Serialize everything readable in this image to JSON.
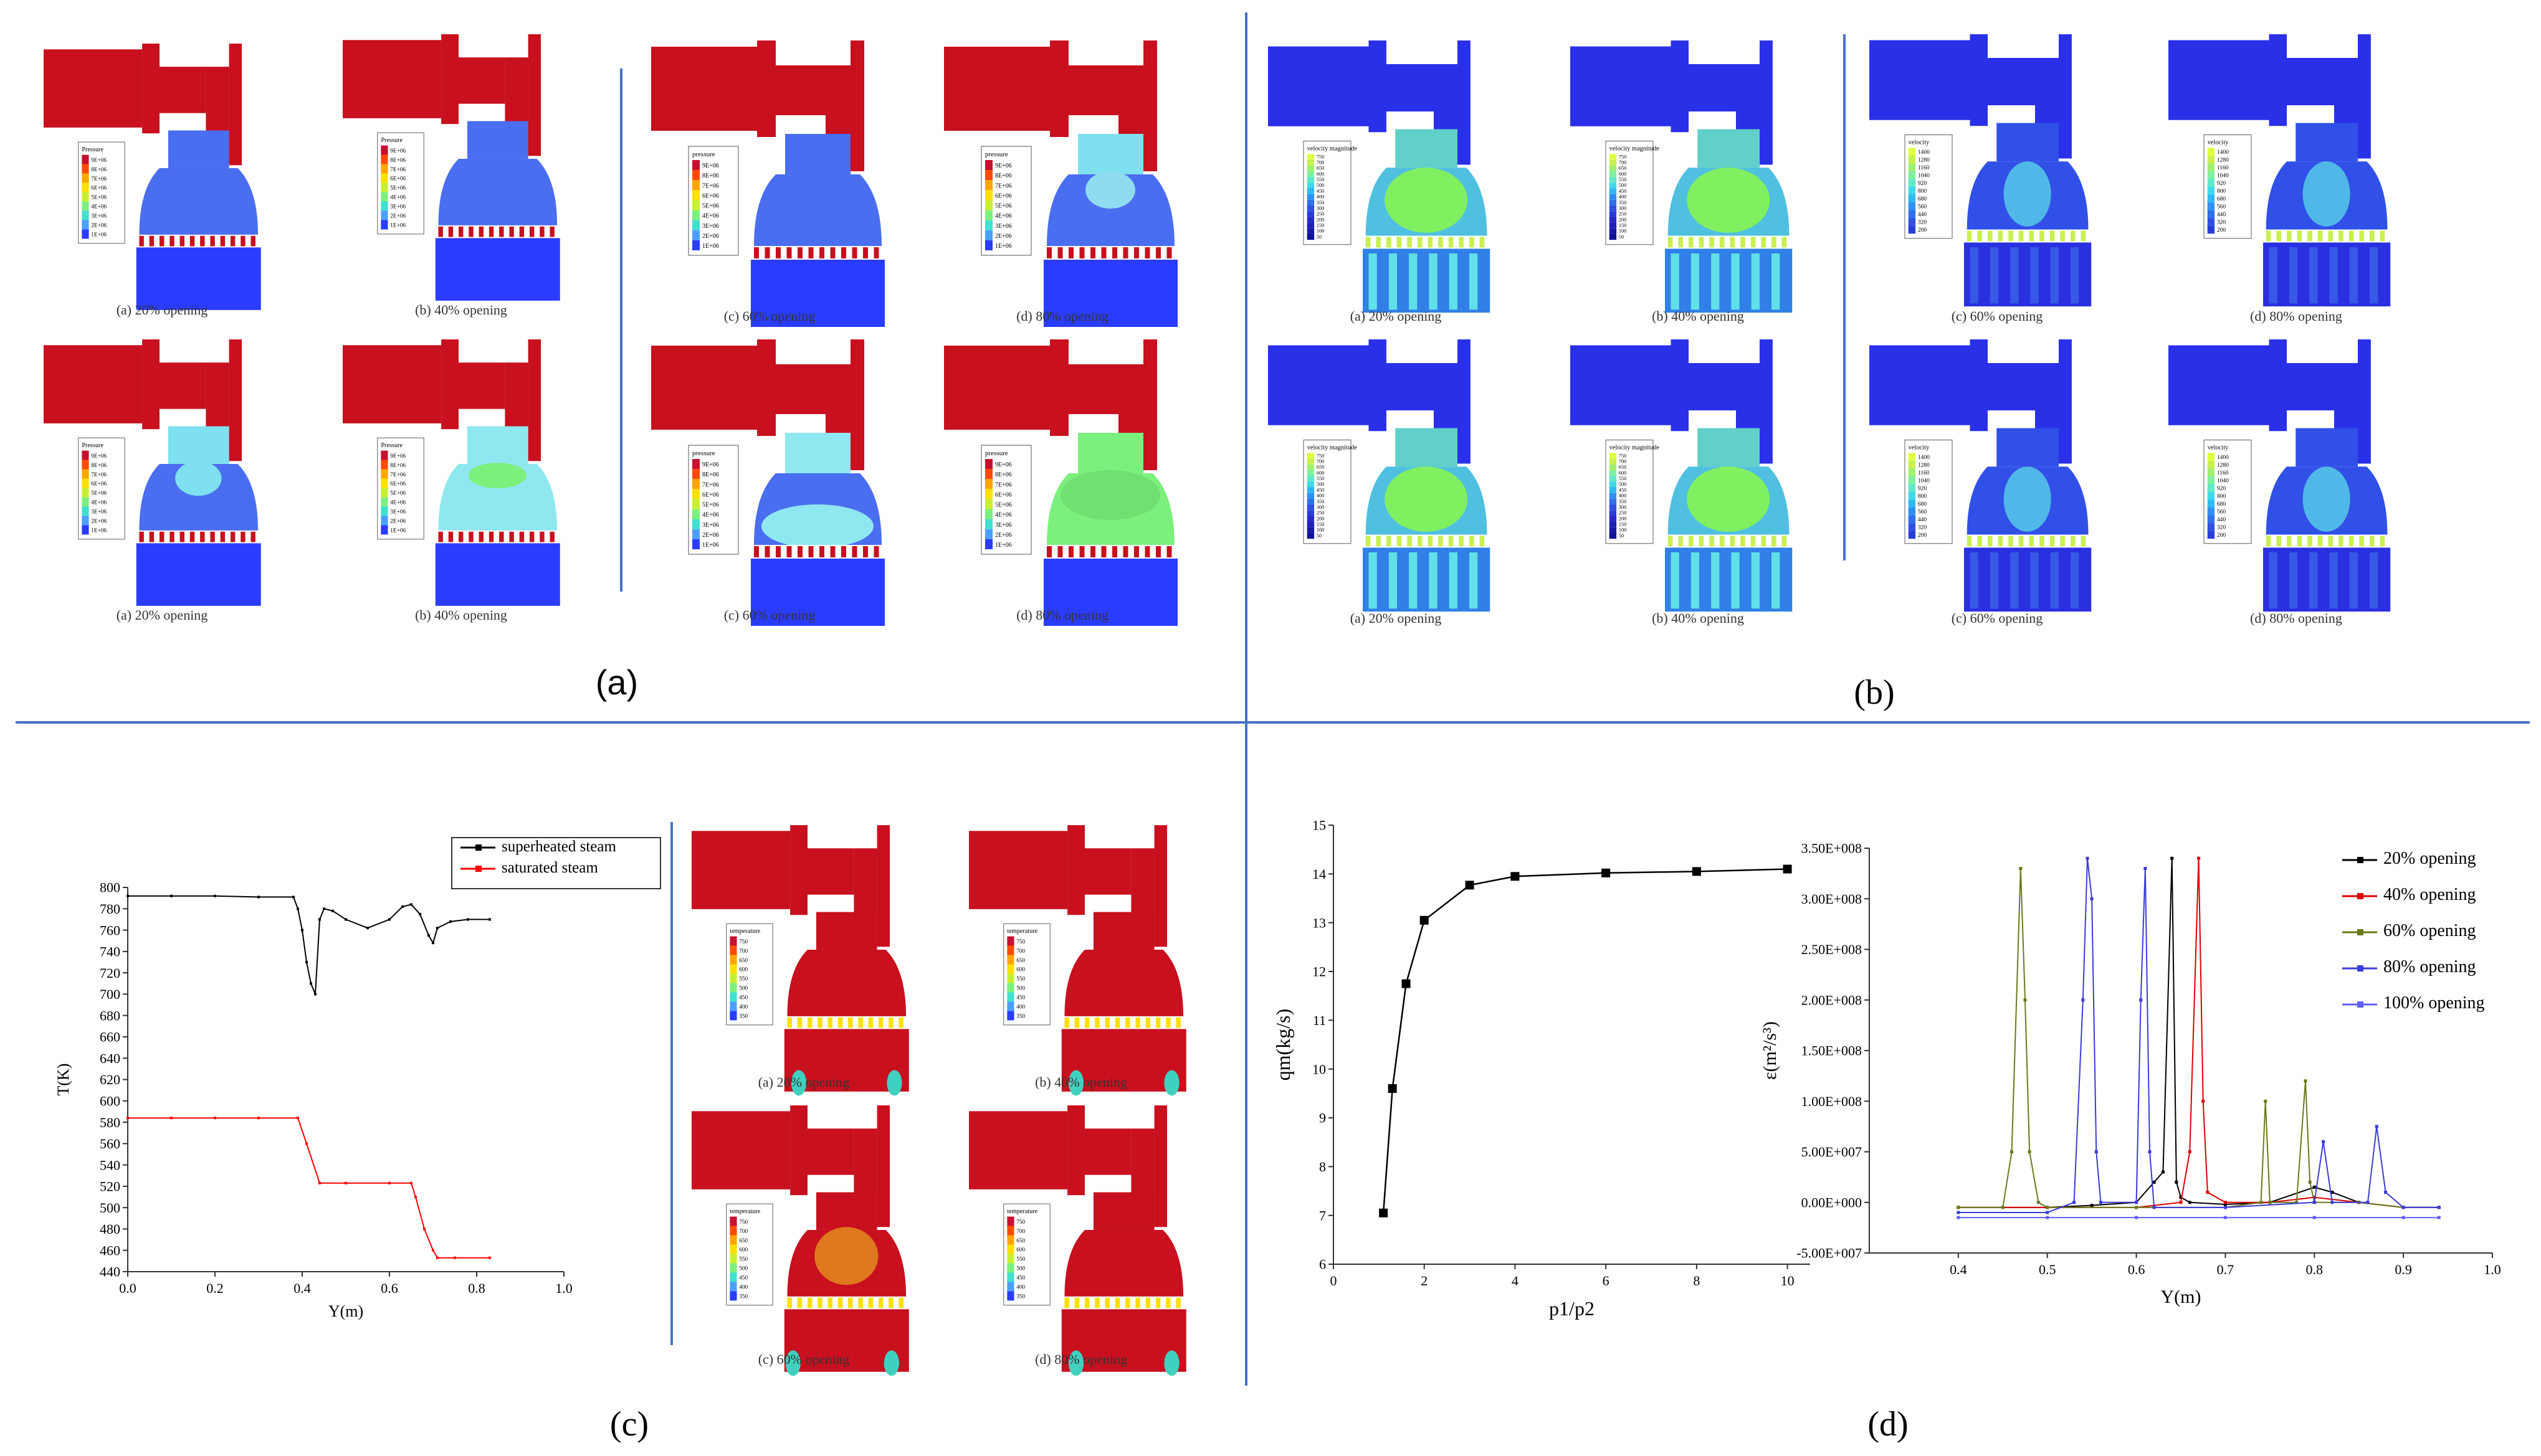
{
  "sections": {
    "a": {
      "label": "(a)",
      "legend_titles": [
        "Pressure",
        "pressure"
      ],
      "legend_ticks": [
        "9E+06",
        "8E+06",
        "7E+06",
        "6E+06",
        "5E+06",
        "4E+06",
        "3E+06",
        "2E+06",
        "1E+06"
      ],
      "captions": [
        "(a) 20% opening",
        "(b) 40% opening",
        "(c) 60% opening",
        "(d) 80% opening"
      ]
    },
    "b": {
      "label": "(b)",
      "legend_titles": [
        "velocity magnitude",
        "velocity"
      ],
      "legend_ticks_left": [
        "750",
        "700",
        "650",
        "600",
        "550",
        "500",
        "450",
        "400",
        "350",
        "300",
        "250",
        "200",
        "150",
        "100",
        "50"
      ],
      "legend_ticks_right": [
        "1400",
        "1280",
        "1160",
        "1040",
        "920",
        "800",
        "680",
        "560",
        "440",
        "320",
        "200"
      ],
      "captions": [
        "(a) 20% opening",
        "(b) 40% opening",
        "(c) 60% opening",
        "(d) 80% opening"
      ]
    },
    "c": {
      "label": "(c)",
      "legend_title": "temperature",
      "legend_ticks": [
        "750",
        "700",
        "650",
        "600",
        "550",
        "500",
        "450",
        "400",
        "350"
      ],
      "captions": [
        "(a) 20% opening",
        "(b) 40% opening",
        "(c) 60% opening",
        "(d) 80% opening"
      ]
    },
    "d": {
      "label": "(d)"
    }
  },
  "chart_data": [
    {
      "type": "line",
      "xlabel": "Y(m)",
      "ylabel": "T(K)",
      "xlim": [
        0.0,
        1.0
      ],
      "ylim": [
        440,
        800
      ],
      "xticks": [
        "0.0",
        "0.2",
        "0.4",
        "0.6",
        "0.8",
        "1.0"
      ],
      "yticks": [
        "440",
        "460",
        "480",
        "500",
        "520",
        "540",
        "560",
        "580",
        "600",
        "620",
        "640",
        "660",
        "680",
        "700",
        "720",
        "740",
        "760",
        "780",
        "800"
      ],
      "legend": "top-right",
      "series": [
        {
          "name": "superheated steam",
          "color": "#000000",
          "x": [
            0.0,
            0.1,
            0.2,
            0.3,
            0.38,
            0.39,
            0.4,
            0.41,
            0.42,
            0.43,
            0.44,
            0.45,
            0.47,
            0.5,
            0.55,
            0.6,
            0.63,
            0.65,
            0.67,
            0.69,
            0.7,
            0.71,
            0.74,
            0.78,
            0.83
          ],
          "y": [
            792,
            792,
            792,
            791,
            791,
            780,
            760,
            730,
            710,
            700,
            770,
            780,
            778,
            770,
            762,
            770,
            782,
            784,
            775,
            755,
            748,
            762,
            768,
            770,
            770
          ]
        },
        {
          "name": "saturated steam",
          "color": "#ff0000",
          "x": [
            0.0,
            0.1,
            0.2,
            0.3,
            0.39,
            0.41,
            0.44,
            0.5,
            0.6,
            0.65,
            0.66,
            0.68,
            0.7,
            0.71,
            0.75,
            0.83
          ],
          "y": [
            584,
            584,
            584,
            584,
            584,
            560,
            523,
            523,
            523,
            523,
            510,
            480,
            460,
            453,
            453,
            453
          ]
        }
      ]
    },
    {
      "type": "line",
      "xlabel": "p1/p2",
      "ylabel": "qm(kg/s)",
      "xlim": [
        0,
        10.5
      ],
      "ylim": [
        6,
        15
      ],
      "xticks": [
        "0",
        "2",
        "4",
        "6",
        "8",
        "10"
      ],
      "yticks": [
        "6",
        "7",
        "8",
        "9",
        "10",
        "11",
        "12",
        "13",
        "14",
        "15"
      ],
      "series": [
        {
          "name": "",
          "color": "#000000",
          "x": [
            1.1,
            1.3,
            1.6,
            2.0,
            3.0,
            4.0,
            6.0,
            8.0,
            10.0
          ],
          "y": [
            7.05,
            9.6,
            11.75,
            13.05,
            13.77,
            13.95,
            14.02,
            14.05,
            14.1
          ]
        }
      ]
    },
    {
      "type": "line",
      "xlabel": "Y(m)",
      "ylabel": "ε(m²/s³)",
      "xlim": [
        0.3,
        1.0
      ],
      "ylim": [
        -50000000.0,
        350000000.0
      ],
      "xticks": [
        "0.4",
        "0.5",
        "0.6",
        "0.7",
        "0.8",
        "0.9",
        "1.0"
      ],
      "yticks": [
        "-5.00E+007",
        "0.00E+000",
        "5.00E+007",
        "1.00E+008",
        "1.50E+008",
        "2.00E+008",
        "2.50E+008",
        "3.00E+008",
        "3.50E+008"
      ],
      "legend": "top-right",
      "series": [
        {
          "name": "20% opening",
          "color": "#000000",
          "x": [
            0.4,
            0.5,
            0.55,
            0.6,
            0.62,
            0.63,
            0.64,
            0.645,
            0.65,
            0.66,
            0.7,
            0.75,
            0.8,
            0.82,
            0.85,
            0.9,
            0.94
          ],
          "y": [
            -5000000.0,
            -5000000.0,
            -3000000.0,
            0,
            20000000.0,
            30000000.0,
            340000000.0,
            20000000.0,
            5000000.0,
            0,
            -2000000.0,
            0,
            15000000.0,
            10000000.0,
            0,
            -5000000.0,
            -5000000.0
          ]
        },
        {
          "name": "40% opening",
          "color": "#dd0000",
          "x": [
            0.4,
            0.5,
            0.6,
            0.65,
            0.66,
            0.67,
            0.675,
            0.68,
            0.7,
            0.75,
            0.8,
            0.85,
            0.9,
            0.94
          ],
          "y": [
            -5000000.0,
            -5000000.0,
            -5000000.0,
            0,
            50000000.0,
            340000000.0,
            100000000.0,
            10000000.0,
            0,
            0,
            5000000.0,
            0,
            -5000000.0,
            -5000000.0
          ]
        },
        {
          "name": "60% opening",
          "color": "#6b7a1a",
          "x": [
            0.4,
            0.45,
            0.46,
            0.47,
            0.475,
            0.48,
            0.49,
            0.5,
            0.6,
            0.7,
            0.74,
            0.745,
            0.75,
            0.78,
            0.79,
            0.795,
            0.8,
            0.85,
            0.9,
            0.94
          ],
          "y": [
            -5000000.0,
            -5000000.0,
            50000000.0,
            330000000.0,
            200000000.0,
            50000000.0,
            0,
            -5000000.0,
            -5000000.0,
            -5000000.0,
            0,
            100000000.0,
            0,
            0,
            120000000.0,
            20000000.0,
            0,
            0,
            -5000000.0,
            -5000000.0
          ]
        },
        {
          "name": "80% opening",
          "color": "#3b3bd9",
          "x": [
            0.4,
            0.5,
            0.53,
            0.54,
            0.545,
            0.55,
            0.555,
            0.56,
            0.6,
            0.605,
            0.61,
            0.615,
            0.62,
            0.7,
            0.8,
            0.81,
            0.82,
            0.86,
            0.87,
            0.88,
            0.9,
            0.94
          ],
          "y": [
            -10000000.0,
            -10000000.0,
            0,
            200000000.0,
            340000000.0,
            300000000.0,
            50000000.0,
            0,
            0,
            200000000.0,
            330000000.0,
            50000000.0,
            -5000000.0,
            -5000000.0,
            0,
            60000000.0,
            0,
            0,
            75000000.0,
            10000000.0,
            -5000000.0,
            -5000000.0
          ]
        },
        {
          "name": "100% opening",
          "color": "#6060ff",
          "x": [
            0.4,
            0.5,
            0.6,
            0.7,
            0.8,
            0.9,
            0.94
          ],
          "y": [
            -15000000.0,
            -15000000.0,
            -15000000.0,
            -15000000.0,
            -15000000.0,
            -15000000.0,
            -15000000.0
          ]
        }
      ]
    }
  ]
}
